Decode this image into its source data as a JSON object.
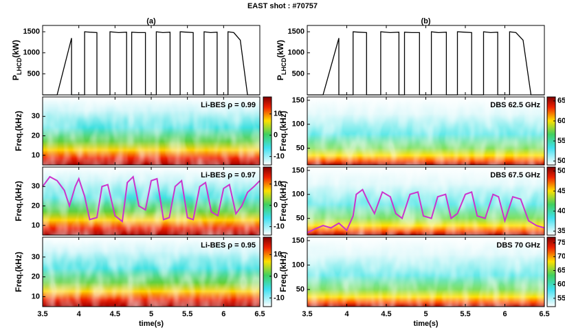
{
  "title": "EAST shot : #70757",
  "chart_data": [
    {
      "type": "line",
      "panel": "(a)",
      "ylabel": [
        "P",
        "LHCD",
        "(kW)"
      ],
      "xlim": [
        3.5,
        6.5
      ],
      "xticks": [
        3.5,
        4,
        4.5,
        5,
        5.5,
        6,
        6.5
      ],
      "ylim": [
        0,
        1650
      ],
      "yticks": [
        500,
        1000,
        1500
      ],
      "series": [
        {
          "color": "#000000",
          "x": [
            3.5,
            3.7,
            3.9,
            3.9,
            4.08,
            4.08,
            4.15,
            4.25,
            4.25,
            4.43,
            4.43,
            4.55,
            4.66,
            4.66,
            4.73,
            4.73,
            4.82,
            4.92,
            4.92,
            5.07,
            5.07,
            5.16,
            5.26,
            5.26,
            5.4,
            5.4,
            5.49,
            5.58,
            5.58,
            5.73,
            5.73,
            5.82,
            5.91,
            5.91,
            6.06,
            6.06,
            6.14,
            6.23,
            6.33,
            6.5
          ],
          "values": [
            0,
            0,
            1350,
            0,
            0,
            1500,
            1490,
            1480,
            0,
            0,
            1500,
            1480,
            1490,
            0,
            0,
            1490,
            1480,
            1480,
            0,
            0,
            1500,
            1480,
            1490,
            0,
            0,
            1500,
            1490,
            1480,
            0,
            0,
            1500,
            1480,
            1490,
            0,
            0,
            1500,
            1480,
            1300,
            0,
            0
          ]
        }
      ]
    },
    {
      "type": "heatmap",
      "ylabel": "Freq.(kHz)",
      "annotation": "Li-BES ρ = 0.99",
      "xlim": [
        3.5,
        6.5
      ],
      "xticks": [
        3.5,
        4,
        4.5,
        5,
        5.5,
        6,
        6.5
      ],
      "ylim": [
        5,
        40
      ],
      "yticks": [
        10,
        20,
        30
      ],
      "clim": [
        -14,
        18
      ],
      "cticks": [
        10,
        0,
        -10
      ]
    },
    {
      "type": "heatmap",
      "ylabel": "Freq.(kHz)",
      "annotation": "Li-BES ρ = 0.97",
      "xlim": [
        3.5,
        6.5
      ],
      "xticks": [
        3.5,
        4,
        4.5,
        5,
        5.5,
        6,
        6.5
      ],
      "ylim": [
        5,
        40
      ],
      "yticks": [
        10,
        20,
        30
      ],
      "clim": [
        -14,
        18
      ],
      "cticks": [
        10,
        0,
        -10
      ],
      "series": [
        {
          "color": "#cc33cc",
          "x": [
            3.5,
            3.6,
            3.7,
            3.8,
            3.87,
            3.95,
            4.0,
            4.08,
            4.15,
            4.25,
            4.32,
            4.4,
            4.5,
            4.6,
            4.67,
            4.75,
            4.83,
            4.92,
            5.0,
            5.08,
            5.17,
            5.25,
            5.33,
            5.42,
            5.5,
            5.58,
            5.67,
            5.75,
            5.83,
            5.92,
            6.0,
            6.08,
            6.17,
            6.25,
            6.33,
            6.42,
            6.5
          ],
          "values": [
            30,
            35,
            33,
            28,
            20,
            30,
            34,
            25,
            13,
            14,
            30,
            31,
            15,
            12,
            32,
            35,
            20,
            18,
            33,
            34,
            13,
            14,
            30,
            33,
            14,
            13,
            30,
            32,
            17,
            15,
            29,
            31,
            16,
            20,
            27,
            30,
            33
          ]
        }
      ]
    },
    {
      "type": "heatmap",
      "ylabel": "Freq.(kHz)",
      "annotation": "Li-BES ρ = 0.95",
      "xlabel": "time(s)",
      "xlim": [
        3.5,
        6.5
      ],
      "xticks": [
        3.5,
        4,
        4.5,
        5,
        5.5,
        6,
        6.5
      ],
      "ylim": [
        5,
        40
      ],
      "yticks": [
        10,
        20,
        30
      ],
      "clim": [
        -14,
        18
      ],
      "cticks": [
        10,
        0,
        -10
      ]
    },
    {
      "type": "line",
      "panel": "(b)",
      "ylabel": [
        "P",
        "LHCD",
        "(kW)"
      ],
      "xlim": [
        3.5,
        6.5
      ],
      "xticks": [
        3.5,
        4,
        4.5,
        5,
        5.5,
        6,
        6.5
      ],
      "ylim": [
        0,
        1650
      ],
      "yticks": [
        500,
        1000,
        1500
      ],
      "series": [
        {
          "color": "#000000",
          "x": [
            3.5,
            3.7,
            3.9,
            3.9,
            4.08,
            4.08,
            4.15,
            4.25,
            4.25,
            4.43,
            4.43,
            4.55,
            4.66,
            4.66,
            4.73,
            4.73,
            4.82,
            4.92,
            4.92,
            5.07,
            5.07,
            5.16,
            5.26,
            5.26,
            5.4,
            5.4,
            5.49,
            5.58,
            5.58,
            5.73,
            5.73,
            5.82,
            5.91,
            5.91,
            6.06,
            6.06,
            6.14,
            6.23,
            6.33,
            6.5
          ],
          "values": [
            0,
            0,
            1350,
            0,
            0,
            1500,
            1490,
            1480,
            0,
            0,
            1500,
            1480,
            1490,
            0,
            0,
            1490,
            1480,
            1480,
            0,
            0,
            1500,
            1480,
            1490,
            0,
            0,
            1500,
            1490,
            1480,
            0,
            0,
            1500,
            1480,
            1490,
            0,
            0,
            1500,
            1480,
            1300,
            0,
            0
          ]
        }
      ]
    },
    {
      "type": "heatmap",
      "ylabel": "Freq.(kHz)",
      "annotation": "DBS 62.5 GHz",
      "xlim": [
        3.5,
        6.5
      ],
      "xticks": [
        3.5,
        4,
        4.5,
        5,
        5.5,
        6,
        6.5
      ],
      "ylim": [
        15,
        157
      ],
      "yticks": [
        50,
        100,
        150
      ],
      "clim": [
        49,
        66
      ],
      "cticks": [
        65,
        60,
        55,
        50
      ]
    },
    {
      "type": "heatmap",
      "ylabel": "Freq.(kHz)",
      "annotation": "DBS 67.5 GHz",
      "xlim": [
        3.5,
        6.5
      ],
      "xticks": [
        3.5,
        4,
        4.5,
        5,
        5.5,
        6,
        6.5
      ],
      "ylim": [
        15,
        157
      ],
      "yticks": [
        50,
        100,
        150
      ],
      "clim": [
        34,
        51
      ],
      "cticks": [
        50,
        45,
        40,
        35
      ],
      "series": [
        {
          "color": "#cc33cc",
          "x": [
            3.5,
            3.6,
            3.7,
            3.8,
            3.9,
            4.0,
            4.08,
            4.12,
            4.2,
            4.27,
            4.35,
            4.45,
            4.55,
            4.62,
            4.7,
            4.8,
            4.9,
            4.97,
            5.07,
            5.15,
            5.25,
            5.32,
            5.4,
            5.5,
            5.58,
            5.65,
            5.75,
            5.85,
            5.92,
            6.0,
            6.1,
            6.2,
            6.3,
            6.4,
            6.5
          ],
          "values": [
            20,
            28,
            35,
            30,
            40,
            25,
            55,
            100,
            110,
            85,
            60,
            105,
            95,
            60,
            50,
            100,
            105,
            55,
            50,
            95,
            100,
            50,
            60,
            100,
            105,
            55,
            50,
            100,
            95,
            45,
            95,
            90,
            45,
            35,
            30
          ]
        }
      ]
    },
    {
      "type": "heatmap",
      "ylabel": "Freq.(kHz)",
      "annotation": "DBS 70 GHz",
      "xlabel": "time(s)",
      "xlim": [
        3.5,
        6.5
      ],
      "xticks": [
        3.5,
        4,
        4.5,
        5,
        5.5,
        6,
        6.5
      ],
      "ylim": [
        15,
        157
      ],
      "yticks": [
        50,
        100,
        150
      ],
      "clim": [
        52,
        77
      ],
      "cticks": [
        75,
        70,
        65,
        60,
        55
      ]
    }
  ]
}
